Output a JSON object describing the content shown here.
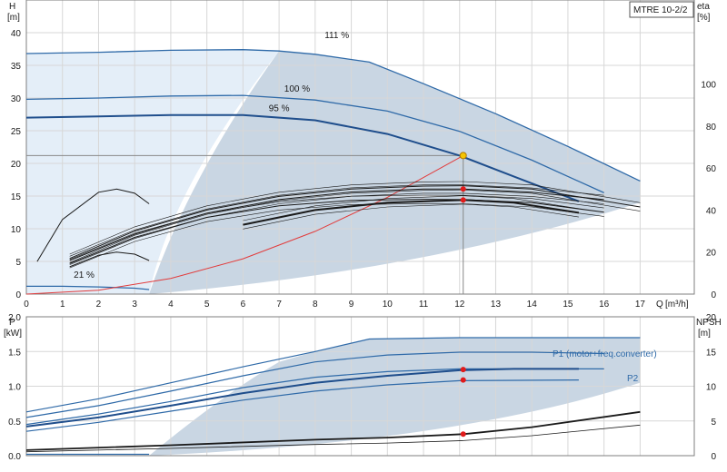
{
  "title_box": "MTRE 10-2/2",
  "colors": {
    "curve_dark": "#1f4e8c",
    "curve_mid": "#2f6aa8",
    "envelope_fill": "#c9d6e3",
    "envelope_light": "#e4eef8",
    "system_curve": "#e23b3b",
    "duty_point": "#e01b1b",
    "highlight_point": "#f5c400",
    "efficiency": "#1a1a1a"
  },
  "chart_data": [
    {
      "type": "line",
      "name": "head-efficiency",
      "ylabel_left": "H",
      "ylabel_left_unit": "[m]",
      "ylabel_right": "eta",
      "ylabel_right_unit": "[%]",
      "xlabel": "Q",
      "xlabel_unit": "[m³/h]",
      "xlim": [
        0,
        18.5
      ],
      "ylim": [
        0,
        45
      ],
      "y2lim": [
        0,
        140
      ],
      "x_ticks": [
        "0",
        "1",
        "2",
        "3",
        "4",
        "5",
        "6",
        "7",
        "8",
        "9",
        "10",
        "11",
        "12",
        "13",
        "14",
        "15",
        "16",
        "17"
      ],
      "y_ticks": [
        "0",
        "5",
        "10",
        "15",
        "20",
        "25",
        "30",
        "35",
        "40"
      ],
      "y2_ticks": [
        "0",
        "20",
        "40",
        "60",
        "80",
        "100"
      ],
      "grid": true,
      "speed_labels": [
        "111 %",
        "100 %",
        "95 %",
        "21 %"
      ],
      "head_curves": [
        {
          "label": "111 %",
          "x": [
            0,
            2,
            4,
            6,
            7,
            8,
            9.5,
            11,
            13,
            15,
            17
          ],
          "y": [
            36.8,
            37.0,
            37.3,
            37.4,
            37.2,
            36.7,
            35.5,
            32.2,
            27.6,
            22.6,
            17.3
          ]
        },
        {
          "label": "100 %",
          "x": [
            0,
            2,
            4,
            6,
            8,
            10,
            12,
            14,
            16
          ],
          "y": [
            29.8,
            30.0,
            30.3,
            30.4,
            29.7,
            28.0,
            24.9,
            20.5,
            15.5
          ]
        },
        {
          "label": "95 %",
          "x": [
            0,
            2,
            4,
            6,
            8,
            10,
            12,
            13.5,
            15.3
          ],
          "y": [
            27.0,
            27.2,
            27.4,
            27.4,
            26.6,
            24.5,
            21.2,
            18.0,
            14.2
          ]
        },
        {
          "label": "21 %",
          "x": [
            0,
            1,
            2,
            3,
            3.4
          ],
          "y": [
            1.2,
            1.2,
            1.1,
            0.9,
            0.7
          ]
        }
      ],
      "system_curve": {
        "x": [
          0,
          2,
          4,
          6,
          8,
          10,
          12.1
        ],
        "y": [
          0,
          0.6,
          2.4,
          5.4,
          9.6,
          14.8,
          21.2
        ]
      },
      "efficiency_curves": [
        {
          "x": [
            1.2,
            3,
            5,
            7,
            9,
            11,
            12.1,
            14,
            17
          ],
          "y": [
            17.0,
            30.0,
            40.0,
            46.5,
            50.0,
            51.4,
            51.6,
            50.0,
            41.5
          ]
        },
        {
          "x": [
            1.2,
            3,
            5,
            7,
            9,
            11,
            12.1,
            14,
            16
          ],
          "y": [
            14.5,
            27.0,
            36.5,
            42.0,
            44.6,
            45.1,
            45.0,
            43.5,
            39.0
          ]
        },
        {
          "x": [
            1.2,
            3,
            5,
            7,
            9,
            11,
            12.1,
            14,
            16
          ],
          "y": [
            16.0,
            28.5,
            38.5,
            45.0,
            48.6,
            50.0,
            50.0,
            48.5,
            45.0
          ]
        },
        {
          "x": [
            6,
            8,
            10,
            12.1,
            13.5,
            15.3
          ],
          "y": [
            33.0,
            40.0,
            43.5,
            44.8,
            43.5,
            38.7
          ]
        }
      ],
      "efficiency_small": [
        {
          "x": [
            0.3,
            1,
            2,
            2.5,
            3,
            3.4
          ],
          "y": [
            15.5,
            35.5,
            48.5,
            50.0,
            48.0,
            43.0
          ]
        },
        {
          "x": [
            1.2,
            2,
            2.5,
            3,
            3.4
          ],
          "y": [
            13.0,
            18.5,
            20.0,
            19.0,
            16.0
          ]
        }
      ],
      "duty_points": [
        {
          "x": 12.1,
          "y": 21.2,
          "highlight": true
        },
        {
          "x": 12.1,
          "eta": 50.0
        },
        {
          "x": 12.1,
          "eta": 44.8
        }
      ]
    },
    {
      "type": "line",
      "name": "power-npsh",
      "ylabel_left": "P",
      "ylabel_left_unit": "[kW]",
      "ylabel_right": "NPSH",
      "ylabel_right_unit": "[m]",
      "xlim": [
        0,
        18.5
      ],
      "ylim": [
        0,
        2.0
      ],
      "y2lim": [
        0,
        20
      ],
      "y_ticks": [
        "0.0",
        "0.5",
        "1.0",
        "1.5",
        "2.0"
      ],
      "y2_ticks": [
        "0",
        "5",
        "10",
        "15",
        "20"
      ],
      "grid": true,
      "series_labels": [
        "P1 (motor+freq.converter)",
        "P2"
      ],
      "power_curves": [
        {
          "x": [
            0,
            2,
            4,
            6,
            8,
            9.5,
            12,
            15,
            17
          ],
          "y": [
            0.63,
            0.82,
            1.05,
            1.28,
            1.5,
            1.68,
            1.7,
            1.7,
            1.7
          ]
        },
        {
          "x": [
            0,
            2,
            4,
            6,
            8,
            10,
            12,
            14,
            16
          ],
          "y": [
            0.55,
            0.72,
            0.93,
            1.15,
            1.35,
            1.45,
            1.49,
            1.49,
            1.47
          ]
        },
        {
          "x": [
            0,
            2,
            4,
            6,
            8,
            10,
            12,
            14,
            16
          ],
          "y": [
            0.45,
            0.6,
            0.78,
            0.98,
            1.13,
            1.21,
            1.25,
            1.25,
            1.25
          ]
        },
        {
          "x": [
            0,
            2,
            4,
            6,
            8,
            10,
            12,
            13.5,
            15.3
          ],
          "y": [
            0.42,
            0.55,
            0.72,
            0.9,
            1.05,
            1.15,
            1.23,
            1.25,
            1.25
          ]
        },
        {
          "x": [
            0,
            2,
            4,
            6,
            8,
            10,
            12,
            15.3
          ],
          "y": [
            0.35,
            0.48,
            0.64,
            0.8,
            0.93,
            1.02,
            1.08,
            1.09
          ]
        },
        {
          "x": [
            0,
            1,
            2,
            3.4
          ],
          "y": [
            0.02,
            0.02,
            0.02,
            0.02
          ]
        }
      ],
      "npsh_curve": {
        "x": [
          0,
          4,
          8,
          10,
          12.1,
          14,
          17
        ],
        "y": [
          0.8,
          1.5,
          2.3,
          2.6,
          3.1,
          4.1,
          6.3
        ]
      },
      "duty_points": [
        {
          "x": 12.1,
          "y": 1.24
        },
        {
          "x": 12.1,
          "y": 1.09
        },
        {
          "x": 12.1,
          "npsh": 3.1
        }
      ]
    }
  ]
}
